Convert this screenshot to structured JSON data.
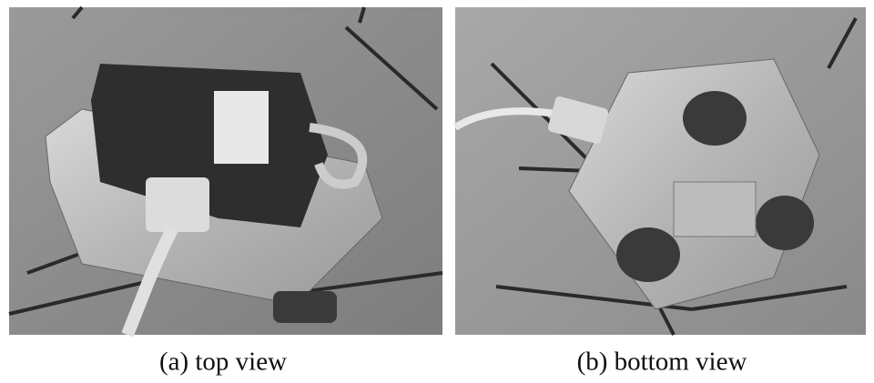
{
  "figure": {
    "panels": [
      {
        "caption": "(a) top view"
      },
      {
        "caption": "(b) bottom view"
      }
    ]
  }
}
